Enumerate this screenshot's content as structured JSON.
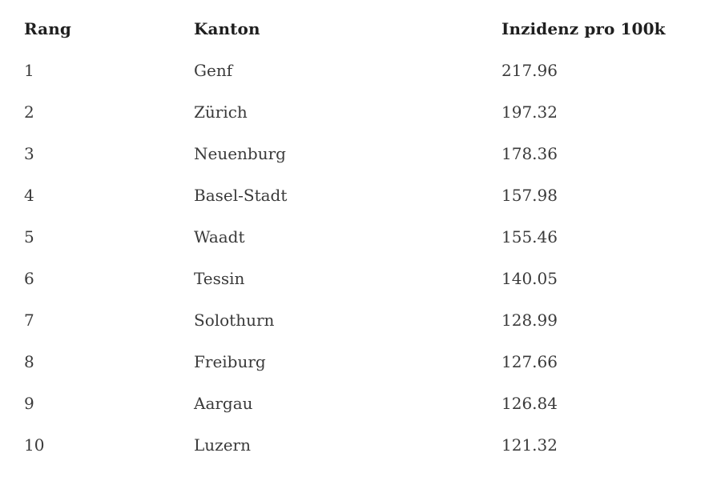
{
  "table": {
    "headers": {
      "rank": "Rang",
      "kanton": "Kanton",
      "incidence": "Inzidenz pro 100k"
    },
    "rows": [
      {
        "rank": "1",
        "kanton": "Genf",
        "incidence": "217.96"
      },
      {
        "rank": "2",
        "kanton": "Zürich",
        "incidence": "197.32"
      },
      {
        "rank": "3",
        "kanton": "Neuenburg",
        "incidence": "178.36"
      },
      {
        "rank": "4",
        "kanton": "Basel-Stadt",
        "incidence": "157.98"
      },
      {
        "rank": "5",
        "kanton": "Waadt",
        "incidence": "155.46"
      },
      {
        "rank": "6",
        "kanton": "Tessin",
        "incidence": "140.05"
      },
      {
        "rank": "7",
        "kanton": "Solothurn",
        "incidence": "128.99"
      },
      {
        "rank": "8",
        "kanton": "Freiburg",
        "incidence": "127.66"
      },
      {
        "rank": "9",
        "kanton": "Aargau",
        "incidence": "126.84"
      },
      {
        "rank": "10",
        "kanton": "Luzern",
        "incidence": "121.32"
      }
    ]
  }
}
